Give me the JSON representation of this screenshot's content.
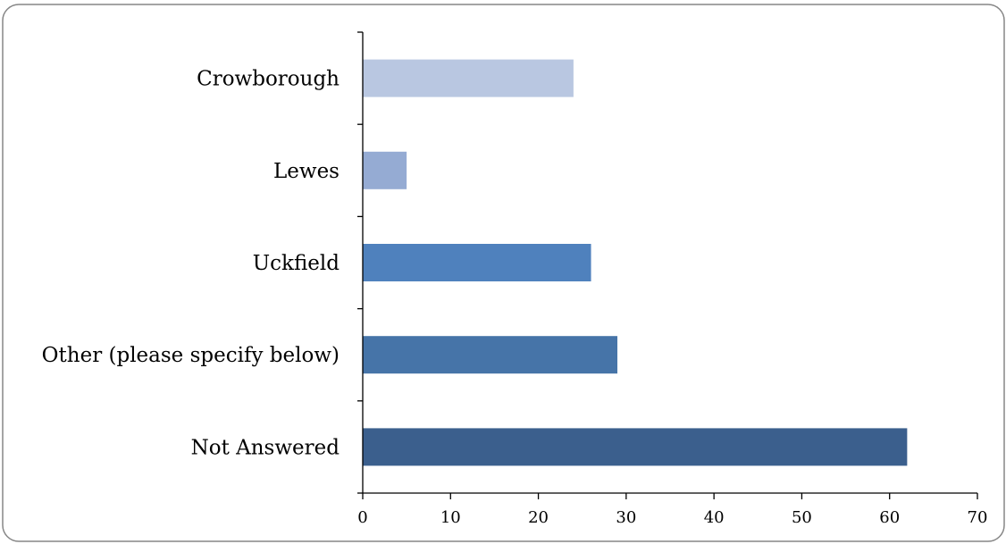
{
  "chart_data": {
    "type": "bar",
    "orientation": "horizontal",
    "categories": [
      "Crowborough",
      "Lewes",
      "Uckfield",
      "Other (please specify below)",
      "Not Answered"
    ],
    "values": [
      24,
      5,
      26,
      29,
      62
    ],
    "bar_colors": [
      "#b9c7e1",
      "#95abd3",
      "#4f81bd",
      "#4674a8",
      "#3b5f8d"
    ],
    "xlim": [
      0,
      70
    ],
    "xticks": [
      0,
      10,
      20,
      30,
      40,
      50,
      60,
      70
    ],
    "grid": false,
    "legend": "none"
  }
}
